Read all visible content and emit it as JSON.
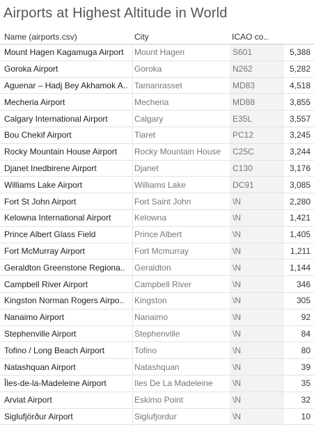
{
  "chart_data": {
    "type": "table",
    "title": "Airports at Highest Altitude in World",
    "columns": [
      "Name (airports.csv)",
      "City",
      "ICAO co..",
      ""
    ],
    "rows": [
      {
        "name": "Mount Hagen Kagamuga Airport",
        "city": "Mount Hagen",
        "icao": "S601",
        "value": "5,388"
      },
      {
        "name": "Goroka Airport",
        "city": "Goroka",
        "icao": "N262",
        "value": "5,282"
      },
      {
        "name": "Aguenar – Hadj Bey Akhamok A..",
        "city": "Tamanrasset",
        "icao": "MD83",
        "value": "4,518"
      },
      {
        "name": "Mecheria Airport",
        "city": "Mecheria",
        "icao": "MD88",
        "value": "3,855"
      },
      {
        "name": "Calgary International Airport",
        "city": "Calgary",
        "icao": "E35L",
        "value": "3,557"
      },
      {
        "name": "Bou Chekif Airport",
        "city": "Tiaret",
        "icao": "PC12",
        "value": "3,245"
      },
      {
        "name": "Rocky Mountain House Airport",
        "city": "Rocky Mountain House",
        "icao": "C25C",
        "value": "3,244"
      },
      {
        "name": "Djanet Inedbirene Airport",
        "city": "Djanet",
        "icao": "C130",
        "value": "3,176"
      },
      {
        "name": "Williams Lake Airport",
        "city": "Williams Lake",
        "icao": "DC91",
        "value": "3,085"
      },
      {
        "name": "Fort St John Airport",
        "city": "Fort Saint John",
        "icao": "\\N",
        "value": "2,280"
      },
      {
        "name": "Kelowna International Airport",
        "city": "Kelowna",
        "icao": "\\N",
        "value": "1,421"
      },
      {
        "name": "Prince Albert Glass Field",
        "city": "Prince Albert",
        "icao": "\\N",
        "value": "1,405"
      },
      {
        "name": "Fort McMurray Airport",
        "city": "Fort Mcmurray",
        "icao": "\\N",
        "value": "1,211"
      },
      {
        "name": "Geraldton Greenstone Regiona..",
        "city": "Geraldton",
        "icao": "\\N",
        "value": "1,144"
      },
      {
        "name": "Campbell River Airport",
        "city": "Campbell River",
        "icao": "\\N",
        "value": "346"
      },
      {
        "name": "Kingston Norman Rogers Airpo..",
        "city": "Kingston",
        "icao": "\\N",
        "value": "305"
      },
      {
        "name": "Nanaimo Airport",
        "city": "Nanaimo",
        "icao": "\\N",
        "value": "92"
      },
      {
        "name": "Stephenville Airport",
        "city": "Stephenville",
        "icao": "\\N",
        "value": "84"
      },
      {
        "name": "Tofino / Long Beach Airport",
        "city": "Tofino",
        "icao": "\\N",
        "value": "80"
      },
      {
        "name": "Natashquan Airport",
        "city": "Natashquan",
        "icao": "\\N",
        "value": "39"
      },
      {
        "name": "Îles-de-la-Madeleine Airport",
        "city": "Iles De La Madeleine",
        "icao": "\\N",
        "value": "35"
      },
      {
        "name": "Arviat Airport",
        "city": "Eskimo Point",
        "icao": "\\N",
        "value": "32"
      },
      {
        "name": "Siglufjörður Airport",
        "city": "Siglufjordur",
        "icao": "\\N",
        "value": "10"
      }
    ]
  }
}
